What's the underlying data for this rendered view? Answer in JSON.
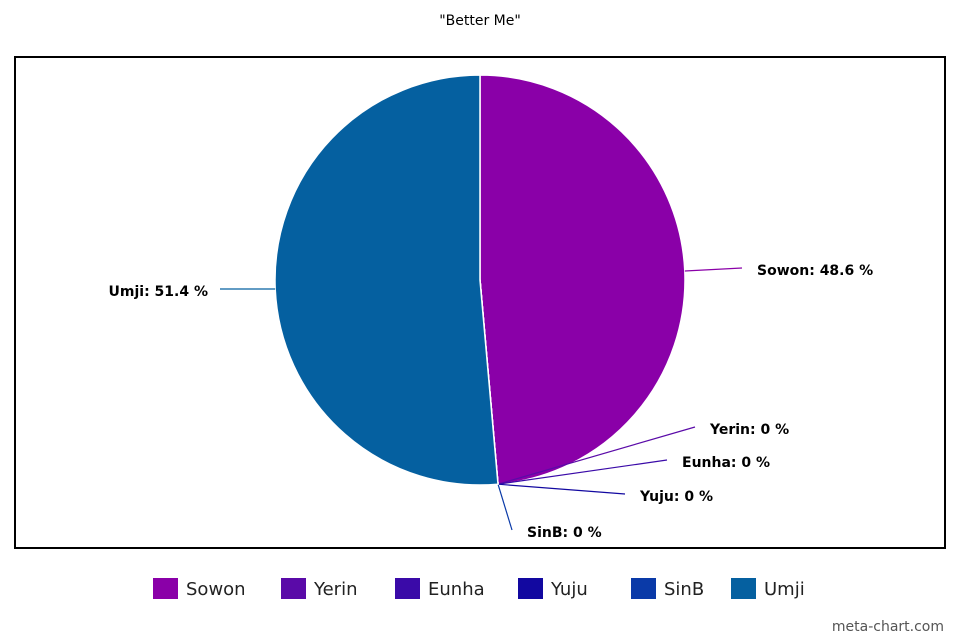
{
  "chart_data": {
    "type": "pie",
    "title": "\"Better Me\"",
    "categories": [
      "Sowon",
      "Yerin",
      "Eunha",
      "Yuju",
      "SinB",
      "Umji"
    ],
    "values": [
      48.6,
      0,
      0,
      0,
      0,
      51.4
    ],
    "value_labels": [
      "Sowon: 48.6 %",
      "Yerin: 0 %",
      "Eunha: 0 %",
      "Yuju: 0 %",
      "SinB: 0 %",
      "Umji: 51.4 %"
    ],
    "colors": [
      "#8a00a8",
      "#5a0aa8",
      "#3a0aa8",
      "#1208a0",
      "#0a3aa8",
      "#0560a0"
    ],
    "legend": "bottom",
    "watermark": "meta-chart.com"
  }
}
